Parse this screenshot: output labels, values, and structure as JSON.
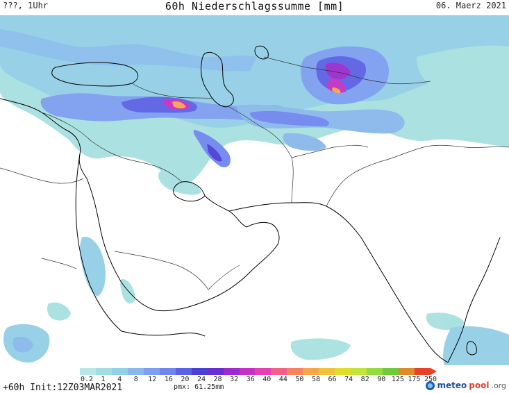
{
  "header": {
    "left": "???, 1Uhr",
    "title": "60h Niederschlagssumme [mm]",
    "date": "06. Maerz 2021"
  },
  "legend": {
    "labels": [
      "0.2",
      "1",
      "4",
      "8",
      "12",
      "16",
      "20",
      "24",
      "28",
      "32",
      "36",
      "40",
      "44",
      "50",
      "58",
      "66",
      "74",
      "82",
      "90",
      "125",
      "175",
      "250"
    ],
    "colors": [
      "#b9e6e6",
      "#a3dde0",
      "#93cfe6",
      "#8ab8ec",
      "#7d9ff0",
      "#6f86ee",
      "#5b62e4",
      "#4a3fd6",
      "#6a2fd0",
      "#9a2ccd",
      "#c431c4",
      "#e53fb2",
      "#f25f8a",
      "#f5835f",
      "#f5a64a",
      "#efc33b",
      "#e2dc2c",
      "#c3e33a",
      "#95da3f",
      "#6fcb3c",
      "#e08a2a",
      "#e8402a"
    ]
  },
  "footer": {
    "init": "+60h Init:12Z03MAR2021",
    "pmx": "pmx: 61.25mm",
    "brand_a": "meteo",
    "brand_b": "pool",
    "brand_c": ".org"
  }
}
